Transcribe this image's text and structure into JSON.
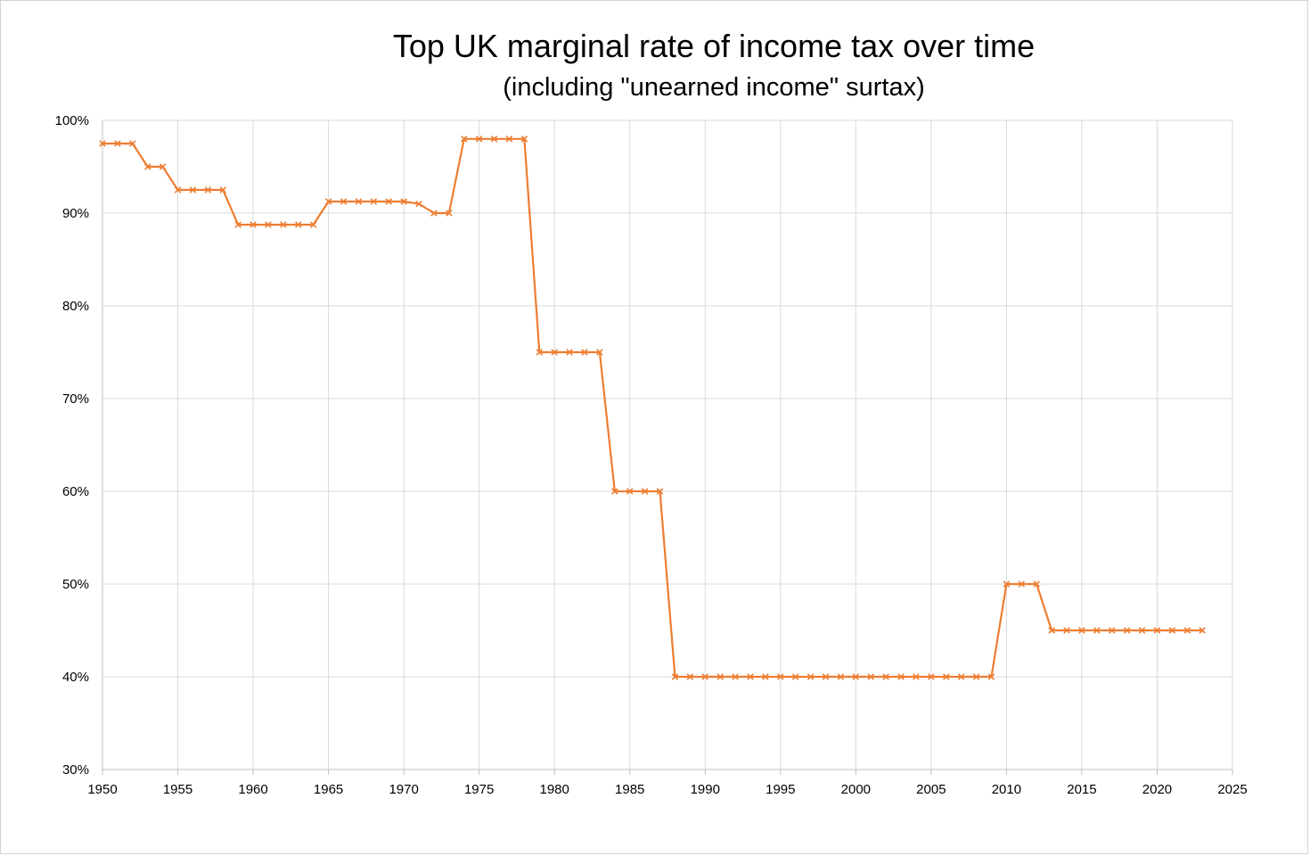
{
  "chart_data": {
    "type": "line",
    "title": "Top UK marginal rate of income tax over time",
    "subtitle": "(including \"unearned income\" surtax)",
    "xlabel": "",
    "ylabel": "",
    "xlim": [
      1950,
      2025
    ],
    "ylim": [
      30,
      100
    ],
    "x_ticks": [
      1950,
      1955,
      1960,
      1965,
      1970,
      1975,
      1980,
      1985,
      1990,
      1995,
      2000,
      2005,
      2010,
      2015,
      2020,
      2025
    ],
    "y_ticks": [
      30,
      40,
      50,
      60,
      70,
      80,
      90,
      100
    ],
    "y_tick_labels": [
      "30%",
      "40%",
      "50%",
      "60%",
      "70%",
      "80%",
      "90%",
      "100%"
    ],
    "grid": true,
    "legend": "none",
    "marker": "x",
    "series": [
      {
        "color": "#ed7d31",
        "x": [
          1950,
          1951,
          1952,
          1953,
          1954,
          1955,
          1956,
          1957,
          1958,
          1959,
          1960,
          1961,
          1962,
          1963,
          1964,
          1965,
          1966,
          1967,
          1968,
          1969,
          1970,
          1971,
          1972,
          1973,
          1974,
          1975,
          1976,
          1977,
          1978,
          1979,
          1980,
          1981,
          1982,
          1983,
          1984,
          1985,
          1986,
          1987,
          1988,
          1989,
          1990,
          1991,
          1992,
          1993,
          1994,
          1995,
          1996,
          1997,
          1998,
          1999,
          2000,
          2001,
          2002,
          2003,
          2004,
          2005,
          2006,
          2007,
          2008,
          2009,
          2010,
          2011,
          2012,
          2013,
          2014,
          2015,
          2016,
          2017,
          2018,
          2019,
          2020,
          2021,
          2022,
          2023
        ],
        "values": [
          97.5,
          97.5,
          97.5,
          95,
          95,
          92.5,
          92.5,
          92.5,
          92.5,
          88.75,
          88.75,
          88.75,
          88.75,
          88.75,
          88.75,
          91.25,
          91.25,
          91.25,
          91.25,
          91.25,
          91.25,
          91,
          90,
          90,
          98,
          98,
          98,
          98,
          98,
          75,
          75,
          75,
          75,
          75,
          60,
          60,
          60,
          60,
          40,
          40,
          40,
          40,
          40,
          40,
          40,
          40,
          40,
          40,
          40,
          40,
          40,
          40,
          40,
          40,
          40,
          40,
          40,
          40,
          40,
          40,
          50,
          50,
          50,
          45,
          45,
          45,
          45,
          45,
          45,
          45,
          45,
          45,
          45,
          45
        ]
      }
    ]
  }
}
